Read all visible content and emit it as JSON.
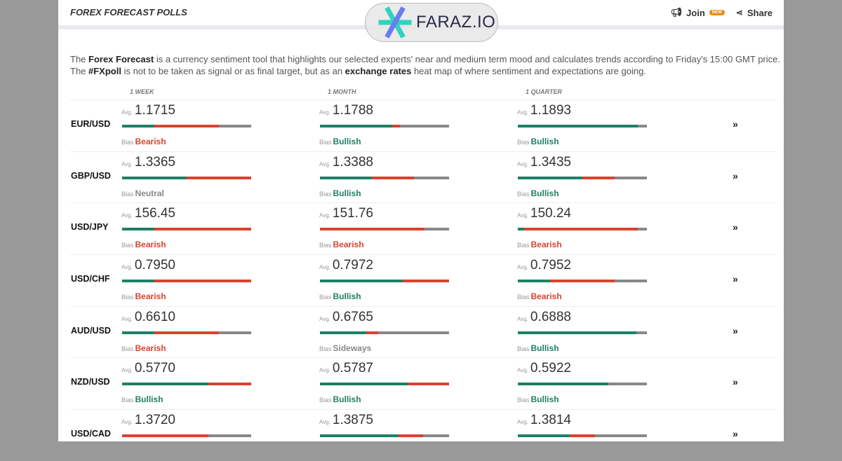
{
  "header": {
    "title": "FOREX FORECAST POLLS",
    "join": "Join",
    "badge": "NEW",
    "share": "Share"
  },
  "intro": {
    "p1": "The ",
    "b1": "Forex Forecast",
    "p2": " is a currency sentiment tool that highlights our selected experts' near and medium term mood and calculates trends according to Friday's 15:00 GMT price.",
    "p3": "The ",
    "b2": "#FXpoll",
    "p4": " is not to be taken as signal or as final target, but as an ",
    "b3": "exchange rates",
    "p5": " heat map of where sentiment and expectations are going."
  },
  "columns": [
    "1 WEEK",
    "1 MONTH",
    "1 QUARTER"
  ],
  "labels": {
    "avg": "Avg.",
    "bias": "Bias",
    "more": "»"
  },
  "colors": {
    "bullish": "#1e8065",
    "bearish": "#d9432f",
    "neutral": "#888888"
  },
  "rows": [
    {
      "pair": "EUR/USD",
      "cells": [
        {
          "avg": "1.1715",
          "bias": "Bearish",
          "split": [
            25,
            50,
            25
          ]
        },
        {
          "avg": "1.1788",
          "bias": "Bullish",
          "split": [
            56,
            6,
            38
          ]
        },
        {
          "avg": "1.1893",
          "bias": "Bullish",
          "split": [
            93,
            0,
            7
          ]
        }
      ]
    },
    {
      "pair": "GBP/USD",
      "cells": [
        {
          "avg": "1.3365",
          "bias": "Neutral",
          "split": [
            50,
            50,
            0
          ]
        },
        {
          "avg": "1.3388",
          "bias": "Bullish",
          "split": [
            40,
            33,
            27
          ]
        },
        {
          "avg": "1.3435",
          "bias": "Bullish",
          "split": [
            50,
            25,
            25
          ]
        }
      ]
    },
    {
      "pair": "USD/JPY",
      "cells": [
        {
          "avg": "156.45",
          "bias": "Bearish",
          "split": [
            25,
            75,
            0
          ]
        },
        {
          "avg": "151.76",
          "bias": "Bearish",
          "split": [
            0,
            81,
            19
          ]
        },
        {
          "avg": "150.24",
          "bias": "Bearish",
          "split": [
            5,
            88,
            7
          ]
        }
      ]
    },
    {
      "pair": "USD/CHF",
      "cells": [
        {
          "avg": "0.7950",
          "bias": "Bearish",
          "split": [
            25,
            75,
            0
          ]
        },
        {
          "avg": "0.7972",
          "bias": "Bullish",
          "split": [
            64,
            36,
            0
          ]
        },
        {
          "avg": "0.7952",
          "bias": "Bearish",
          "split": [
            25,
            50,
            25
          ]
        }
      ]
    },
    {
      "pair": "AUD/USD",
      "cells": [
        {
          "avg": "0.6610",
          "bias": "Bearish",
          "split": [
            25,
            50,
            25
          ]
        },
        {
          "avg": "0.6765",
          "bias": "Sideways",
          "split": [
            36,
            9,
            55
          ]
        },
        {
          "avg": "0.6888",
          "bias": "Bullish",
          "split": [
            92,
            0,
            8
          ]
        }
      ]
    },
    {
      "pair": "NZD/USD",
      "cells": [
        {
          "avg": "0.5770",
          "bias": "Bullish",
          "split": [
            67,
            33,
            0
          ]
        },
        {
          "avg": "0.5787",
          "bias": "Bullish",
          "split": [
            68,
            32,
            0
          ]
        },
        {
          "avg": "0.5922",
          "bias": "Bullish",
          "split": [
            70,
            0,
            30
          ]
        }
      ]
    },
    {
      "pair": "USD/CAD",
      "cells": [
        {
          "avg": "1.3720",
          "bias": "",
          "split": [
            0,
            67,
            33
          ]
        },
        {
          "avg": "1.3875",
          "bias": "",
          "split": [
            61,
            19,
            20
          ]
        },
        {
          "avg": "1.3814",
          "bias": "",
          "split": [
            40,
            20,
            40
          ]
        }
      ]
    }
  ],
  "watermark": {
    "text": "FARAZ.IO"
  }
}
